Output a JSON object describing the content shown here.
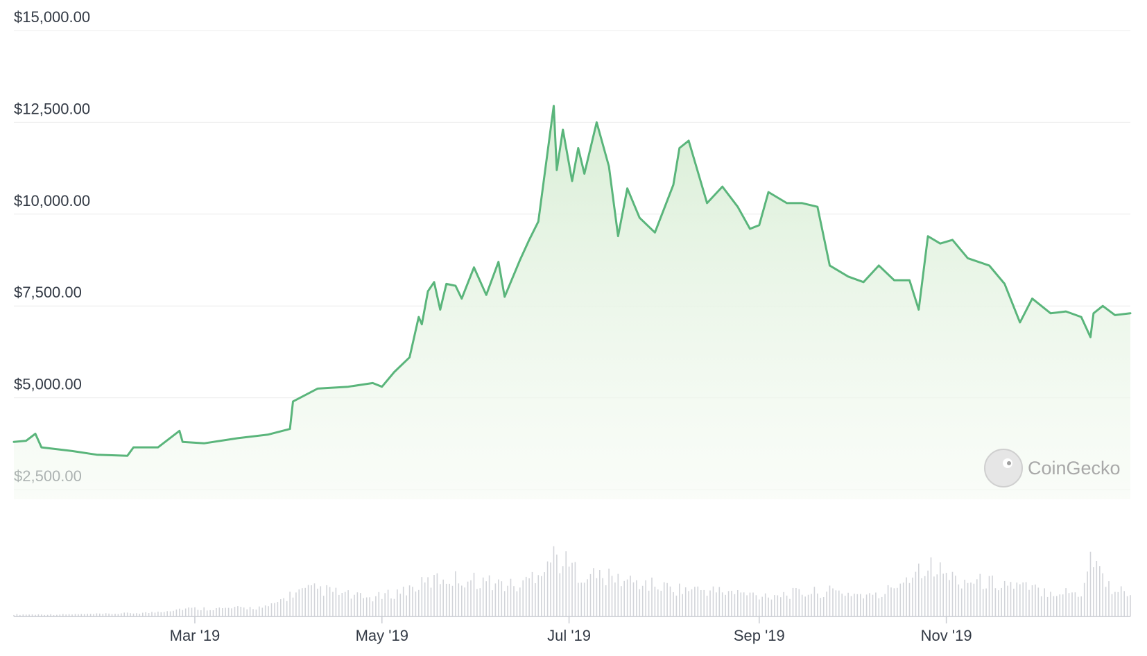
{
  "chart_data": {
    "type": "area",
    "title": "",
    "xlabel": "",
    "ylabel": "",
    "x_range": [
      "2019-01-01",
      "2019-12-31"
    ],
    "ylim": [
      2000,
      15000
    ],
    "y_ticks": [
      {
        "value": 2500,
        "label": "$2,500.00"
      },
      {
        "value": 5000,
        "label": "$5,000.00"
      },
      {
        "value": 7500,
        "label": "$7,500.00"
      },
      {
        "value": 10000,
        "label": "$10,000.00"
      },
      {
        "value": 12500,
        "label": "$12,500.00"
      },
      {
        "value": 15000,
        "label": "$15,000.00"
      }
    ],
    "x_ticks": [
      {
        "date": "2019-03-01",
        "label": "Mar '19"
      },
      {
        "date": "2019-05-01",
        "label": "May '19"
      },
      {
        "date": "2019-07-01",
        "label": "Jul '19"
      },
      {
        "date": "2019-09-01",
        "label": "Sep '19"
      },
      {
        "date": "2019-11-01",
        "label": "Nov '19"
      }
    ],
    "grid": true,
    "legend": "none",
    "colors": {
      "line": "#5ab57b",
      "fill": "#e3f2df",
      "volume": "#d2d4d9",
      "grid": "#ececec",
      "text": "#333a45"
    },
    "series": [
      {
        "values": [
          [
            "2019-01-01",
            3800
          ],
          [
            "2019-01-05",
            3830
          ],
          [
            "2019-01-08",
            4020
          ],
          [
            "2019-01-10",
            3650
          ],
          [
            "2019-01-20",
            3550
          ],
          [
            "2019-01-28",
            3450
          ],
          [
            "2019-02-07",
            3420
          ],
          [
            "2019-02-09",
            3650
          ],
          [
            "2019-02-17",
            3650
          ],
          [
            "2019-02-24",
            4100
          ],
          [
            "2019-02-25",
            3800
          ],
          [
            "2019-03-04",
            3760
          ],
          [
            "2019-03-15",
            3900
          ],
          [
            "2019-03-25",
            4000
          ],
          [
            "2019-04-01",
            4150
          ],
          [
            "2019-04-02",
            4900
          ],
          [
            "2019-04-10",
            5250
          ],
          [
            "2019-04-20",
            5300
          ],
          [
            "2019-04-28",
            5400
          ],
          [
            "2019-05-01",
            5300
          ],
          [
            "2019-05-05",
            5700
          ],
          [
            "2019-05-10",
            6100
          ],
          [
            "2019-05-13",
            7200
          ],
          [
            "2019-05-14",
            7000
          ],
          [
            "2019-05-16",
            7900
          ],
          [
            "2019-05-18",
            8150
          ],
          [
            "2019-05-20",
            7400
          ],
          [
            "2019-05-22",
            8100
          ],
          [
            "2019-05-25",
            8050
          ],
          [
            "2019-05-27",
            7700
          ],
          [
            "2019-05-31",
            8550
          ],
          [
            "2019-06-04",
            7800
          ],
          [
            "2019-06-08",
            8700
          ],
          [
            "2019-06-10",
            7750
          ],
          [
            "2019-06-15",
            8750
          ],
          [
            "2019-06-18",
            9300
          ],
          [
            "2019-06-21",
            9800
          ],
          [
            "2019-06-26",
            12950
          ],
          [
            "2019-06-27",
            11200
          ],
          [
            "2019-06-29",
            12300
          ],
          [
            "2019-07-02",
            10900
          ],
          [
            "2019-07-04",
            11800
          ],
          [
            "2019-07-06",
            11100
          ],
          [
            "2019-07-10",
            12500
          ],
          [
            "2019-07-14",
            11300
          ],
          [
            "2019-07-17",
            9400
          ],
          [
            "2019-07-20",
            10700
          ],
          [
            "2019-07-24",
            9900
          ],
          [
            "2019-07-29",
            9500
          ],
          [
            "2019-08-04",
            10800
          ],
          [
            "2019-08-06",
            11800
          ],
          [
            "2019-08-09",
            12000
          ],
          [
            "2019-08-15",
            10300
          ],
          [
            "2019-08-20",
            10750
          ],
          [
            "2019-08-25",
            10200
          ],
          [
            "2019-08-29",
            9600
          ],
          [
            "2019-09-01",
            9700
          ],
          [
            "2019-09-04",
            10600
          ],
          [
            "2019-09-10",
            10300
          ],
          [
            "2019-09-15",
            10300
          ],
          [
            "2019-09-20",
            10200
          ],
          [
            "2019-09-24",
            8600
          ],
          [
            "2019-09-30",
            8300
          ],
          [
            "2019-10-05",
            8150
          ],
          [
            "2019-10-10",
            8600
          ],
          [
            "2019-10-15",
            8200
          ],
          [
            "2019-10-20",
            8200
          ],
          [
            "2019-10-23",
            7400
          ],
          [
            "2019-10-26",
            9400
          ],
          [
            "2019-10-30",
            9200
          ],
          [
            "2019-11-03",
            9300
          ],
          [
            "2019-11-08",
            8800
          ],
          [
            "2019-11-15",
            8600
          ],
          [
            "2019-11-20",
            8100
          ],
          [
            "2019-11-25",
            7050
          ],
          [
            "2019-11-29",
            7700
          ],
          [
            "2019-12-05",
            7300
          ],
          [
            "2019-12-10",
            7350
          ],
          [
            "2019-12-15",
            7200
          ],
          [
            "2019-12-18",
            6650
          ],
          [
            "2019-12-19",
            7300
          ],
          [
            "2019-12-22",
            7500
          ],
          [
            "2019-12-26",
            7250
          ],
          [
            "2019-12-31",
            7300
          ]
        ]
      }
    ],
    "volume_note": "Relative trading volume bars (no axis shown); values normalized 0-1.",
    "volume": [
      [
        "2019-01-01",
        0.03
      ],
      [
        "2019-01-15",
        0.03
      ],
      [
        "2019-02-01",
        0.04
      ],
      [
        "2019-02-15",
        0.06
      ],
      [
        "2019-02-25",
        0.12
      ],
      [
        "2019-03-10",
        0.12
      ],
      [
        "2019-03-25",
        0.14
      ],
      [
        "2019-04-02",
        0.35
      ],
      [
        "2019-04-10",
        0.42
      ],
      [
        "2019-04-25",
        0.28
      ],
      [
        "2019-05-01",
        0.3
      ],
      [
        "2019-05-12",
        0.45
      ],
      [
        "2019-05-20",
        0.58
      ],
      [
        "2019-06-01",
        0.55
      ],
      [
        "2019-06-15",
        0.45
      ],
      [
        "2019-06-26",
        0.92
      ],
      [
        "2019-07-05",
        0.65
      ],
      [
        "2019-07-15",
        0.58
      ],
      [
        "2019-07-25",
        0.5
      ],
      [
        "2019-08-05",
        0.42
      ],
      [
        "2019-08-15",
        0.4
      ],
      [
        "2019-09-01",
        0.32
      ],
      [
        "2019-09-25",
        0.38
      ],
      [
        "2019-10-10",
        0.3
      ],
      [
        "2019-10-25",
        0.8
      ],
      [
        "2019-11-05",
        0.55
      ],
      [
        "2019-11-20",
        0.5
      ],
      [
        "2019-12-01",
        0.4
      ],
      [
        "2019-12-15",
        0.35
      ],
      [
        "2019-12-18",
        0.95
      ],
      [
        "2019-12-25",
        0.4
      ],
      [
        "2019-12-31",
        0.38
      ]
    ]
  },
  "watermark": {
    "text": "CoinGecko"
  }
}
